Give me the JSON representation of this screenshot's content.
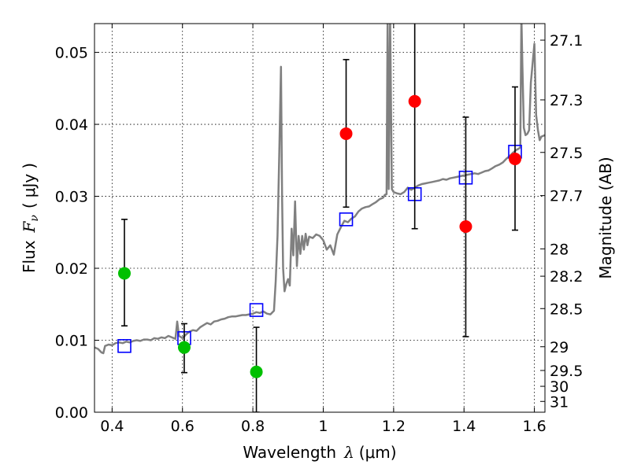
{
  "chart_data": {
    "type": "scatter",
    "xlabel": "Wavelength",
    "xlabel_symbol": "λ",
    "xlabel_unit": "(μm)",
    "ylabel": "Flux",
    "ylabel_symbol": "F",
    "ylabel_subscript": "ν",
    "ylabel_unit": "μJy",
    "ylabel_right": "Magnitude (AB)",
    "xlim": [
      0.35,
      1.63
    ],
    "ylim": [
      0.0,
      0.054
    ],
    "grid": true,
    "x_ticks": [
      0.4,
      0.6,
      0.8,
      1.0,
      1.2,
      1.4,
      1.6
    ],
    "x_tick_labels": [
      "0.4",
      "0.6",
      "0.8",
      "1",
      "1.2",
      "1.4",
      "1.6"
    ],
    "y_ticks": [
      0.0,
      0.01,
      0.02,
      0.03,
      0.04,
      0.05
    ],
    "y_tick_labels": [
      "0.00",
      "0.01",
      "0.02",
      "0.03",
      "0.04",
      "0.05"
    ],
    "right_ticks": [
      {
        "label": "27.1",
        "flux": 0.0517
      },
      {
        "label": "27.3",
        "flux": 0.0434
      },
      {
        "label": "27.5",
        "flux": 0.0361
      },
      {
        "label": "27.7",
        "flux": 0.0301
      },
      {
        "label": "28",
        "flux": 0.0227
      },
      {
        "label": "28.2",
        "flux": 0.0189
      },
      {
        "label": "28.5",
        "flux": 0.0144
      },
      {
        "label": "29",
        "flux": 0.0091
      },
      {
        "label": "29.5",
        "flux": 0.0058
      },
      {
        "label": "30",
        "flux": 0.0036
      },
      {
        "label": "31",
        "flux": 0.0015
      }
    ],
    "series": [
      {
        "kind": "line",
        "color": "#808080",
        "x": [
          0.35,
          0.36,
          0.37,
          0.375,
          0.38,
          0.39,
          0.4,
          0.41,
          0.42,
          0.43,
          0.44,
          0.45,
          0.46,
          0.47,
          0.48,
          0.49,
          0.5,
          0.51,
          0.52,
          0.53,
          0.54,
          0.55,
          0.56,
          0.57,
          0.58,
          0.585,
          0.59,
          0.6,
          0.61,
          0.62,
          0.63,
          0.64,
          0.65,
          0.66,
          0.67,
          0.68,
          0.69,
          0.7,
          0.71,
          0.72,
          0.73,
          0.74,
          0.75,
          0.76,
          0.77,
          0.78,
          0.79,
          0.8,
          0.81,
          0.82,
          0.83,
          0.84,
          0.85,
          0.86,
          0.865,
          0.87,
          0.875,
          0.88,
          0.883,
          0.886,
          0.89,
          0.895,
          0.9,
          0.905,
          0.91,
          0.915,
          0.92,
          0.925,
          0.93,
          0.935,
          0.94,
          0.945,
          0.95,
          0.955,
          0.96,
          0.97,
          0.98,
          0.99,
          1.0,
          1.01,
          1.02,
          1.03,
          1.04,
          1.05,
          1.06,
          1.07,
          1.08,
          1.09,
          1.1,
          1.11,
          1.12,
          1.13,
          1.14,
          1.15,
          1.16,
          1.17,
          1.175,
          1.18,
          1.183,
          1.186,
          1.19,
          1.195,
          1.2,
          1.21,
          1.22,
          1.23,
          1.24,
          1.25,
          1.26,
          1.27,
          1.28,
          1.29,
          1.3,
          1.31,
          1.32,
          1.33,
          1.34,
          1.35,
          1.36,
          1.37,
          1.38,
          1.39,
          1.4,
          1.41,
          1.42,
          1.43,
          1.44,
          1.45,
          1.46,
          1.47,
          1.48,
          1.49,
          1.5,
          1.51,
          1.52,
          1.53,
          1.54,
          1.55,
          1.555,
          1.56,
          1.563,
          1.566,
          1.57,
          1.575,
          1.58,
          1.585,
          1.59,
          1.6,
          1.605,
          1.61,
          1.615,
          1.62,
          1.63
        ],
        "y": [
          0.009,
          0.0088,
          0.0083,
          0.0082,
          0.0092,
          0.0094,
          0.0093,
          0.0096,
          0.0097,
          0.0096,
          0.0098,
          0.0097,
          0.0099,
          0.01,
          0.0099,
          0.0101,
          0.0101,
          0.01,
          0.0103,
          0.0102,
          0.0104,
          0.0103,
          0.0106,
          0.0104,
          0.0102,
          0.0126,
          0.0106,
          0.0103,
          0.0108,
          0.0112,
          0.0114,
          0.0113,
          0.0118,
          0.0121,
          0.0124,
          0.0122,
          0.0126,
          0.0127,
          0.0129,
          0.013,
          0.0132,
          0.0133,
          0.0133,
          0.0134,
          0.0135,
          0.0135,
          0.0136,
          0.0137,
          0.0139,
          0.0138,
          0.014,
          0.0137,
          0.0136,
          0.0141,
          0.0182,
          0.0245,
          0.0358,
          0.048,
          0.03,
          0.02,
          0.0168,
          0.0178,
          0.0185,
          0.0176,
          0.0255,
          0.0218,
          0.0293,
          0.0203,
          0.0245,
          0.022,
          0.0245,
          0.0226,
          0.0248,
          0.0232,
          0.0244,
          0.0242,
          0.0247,
          0.0245,
          0.0239,
          0.0226,
          0.0232,
          0.0219,
          0.0247,
          0.0257,
          0.0266,
          0.0264,
          0.0269,
          0.0272,
          0.0279,
          0.0283,
          0.0285,
          0.0286,
          0.0289,
          0.0292,
          0.0296,
          0.0298,
          0.0302,
          0.0303,
          0.055,
          0.031,
          0.055,
          0.031,
          0.0306,
          0.0304,
          0.0303,
          0.0306,
          0.0312,
          0.0309,
          0.0312,
          0.0315,
          0.0317,
          0.0318,
          0.0319,
          0.032,
          0.0321,
          0.0322,
          0.0324,
          0.0323,
          0.0325,
          0.0326,
          0.0327,
          0.0328,
          0.0329,
          0.033,
          0.0331,
          0.0332,
          0.0331,
          0.0333,
          0.0335,
          0.0336,
          0.0339,
          0.0342,
          0.0344,
          0.0347,
          0.0352,
          0.0356,
          0.0361,
          0.0365,
          0.0366,
          0.0368,
          0.055,
          0.048,
          0.0395,
          0.0385,
          0.0387,
          0.0392,
          0.0458,
          0.0512,
          0.0413,
          0.0392,
          0.0378,
          0.0383,
          0.0385
        ]
      },
      {
        "kind": "open_square",
        "color": "#0000ff",
        "x": [
          0.435,
          0.605,
          0.81,
          1.065,
          1.26,
          1.405,
          1.545
        ],
        "y": [
          0.0092,
          0.0103,
          0.0142,
          0.0268,
          0.0303,
          0.0326,
          0.0362
        ]
      },
      {
        "kind": "filled_circle",
        "color": "#00c000",
        "x": [
          0.435,
          0.605,
          0.81
        ],
        "y": [
          0.0193,
          0.009,
          0.0056
        ],
        "yerr_low": [
          0.012,
          0.0055,
          0.0
        ],
        "yerr_high": [
          0.0268,
          0.0123,
          0.0118
        ]
      },
      {
        "kind": "filled_circle",
        "color": "#ff0000",
        "x": [
          1.065,
          1.26,
          1.405,
          1.545
        ],
        "y": [
          0.0387,
          0.0432,
          0.0258,
          0.0352
        ],
        "yerr_low": [
          0.0285,
          0.0255,
          0.0105,
          0.0253
        ],
        "yerr_high": [
          0.049,
          0.056,
          0.041,
          0.0452
        ]
      }
    ]
  }
}
